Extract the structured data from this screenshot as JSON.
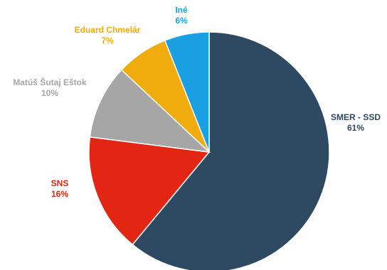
{
  "chart_data": {
    "type": "pie",
    "title": "",
    "start_angle_deg": 0,
    "direction": "clockwise",
    "legend": "none",
    "slices": [
      {
        "name": "SMER - SSD",
        "value": 61,
        "label": "61%",
        "color": "#2e4a63"
      },
      {
        "name": "SNS",
        "value": 16,
        "label": "16%",
        "color": "#e32614"
      },
      {
        "name": "Matúš Šutaj Eštok",
        "value": 10,
        "label": "10%",
        "color": "#a6a6a6"
      },
      {
        "name": "Eduard Chmelár",
        "value": 7,
        "label": "7%",
        "color": "#f0ac0c"
      },
      {
        "name": "Iné",
        "value": 6,
        "label": "6%",
        "color": "#1aa0e2"
      }
    ]
  }
}
